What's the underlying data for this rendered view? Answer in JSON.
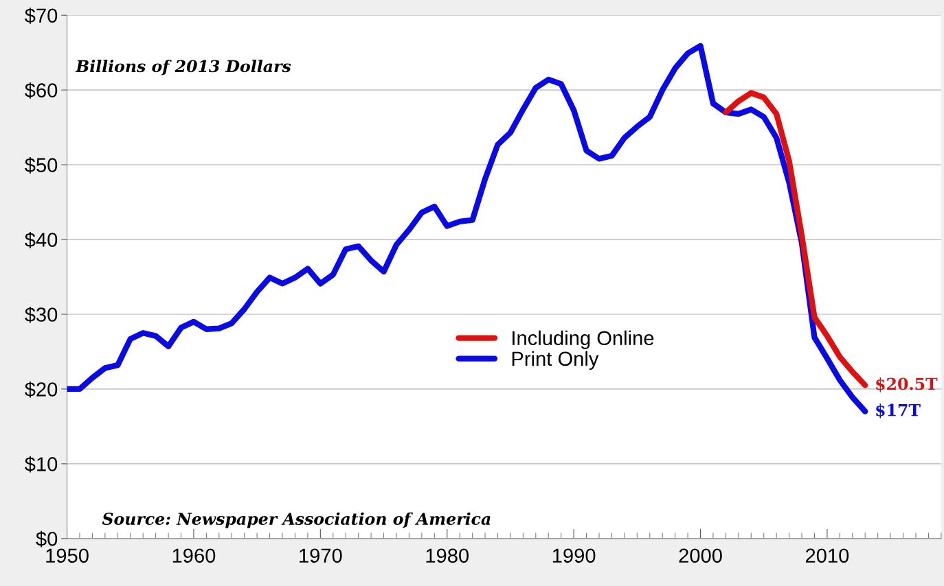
{
  "chart_data": {
    "type": "line",
    "x": [
      1950,
      1951,
      1952,
      1953,
      1954,
      1955,
      1956,
      1957,
      1958,
      1959,
      1960,
      1961,
      1962,
      1963,
      1964,
      1965,
      1966,
      1967,
      1968,
      1969,
      1970,
      1971,
      1972,
      1973,
      1974,
      1975,
      1976,
      1977,
      1978,
      1979,
      1980,
      1981,
      1982,
      1983,
      1984,
      1985,
      1986,
      1987,
      1988,
      1989,
      1990,
      1991,
      1992,
      1993,
      1994,
      1995,
      1996,
      1997,
      1998,
      1999,
      2000,
      2001,
      2002,
      2003,
      2004,
      2005,
      2006,
      2007,
      2008,
      2009,
      2010,
      2011,
      2012,
      2013
    ],
    "series": [
      {
        "name": "Including Online",
        "color": "#e01010",
        "x": [
          2002,
          2003,
          2004,
          2005,
          2006,
          2007,
          2008,
          2009,
          2010,
          2011,
          2012,
          2013
        ],
        "values": [
          57.0,
          58.5,
          59.6,
          59.0,
          56.8,
          50.5,
          40.5,
          29.6,
          27.1,
          24.3,
          22.3,
          20.5
        ]
      },
      {
        "name": "Print Only",
        "color": "#0a0ae6",
        "values": [
          20.0,
          20.0,
          21.5,
          22.8,
          23.2,
          26.7,
          27.5,
          27.1,
          25.7,
          28.2,
          29.0,
          28.0,
          28.1,
          28.8,
          30.7,
          33.0,
          34.9,
          34.1,
          34.9,
          36.1,
          34.1,
          35.3,
          38.7,
          39.1,
          37.2,
          35.7,
          39.3,
          41.3,
          43.6,
          44.4,
          41.8,
          42.4,
          42.6,
          48.1,
          52.7,
          54.3,
          57.4,
          60.3,
          61.4,
          60.8,
          57.3,
          51.9,
          50.8,
          51.2,
          53.6,
          55.1,
          56.4,
          60.0,
          62.9,
          64.9,
          65.9,
          58.2,
          57.0,
          56.8,
          57.4,
          56.4,
          53.6,
          47.6,
          39.5,
          26.9,
          24.1,
          21.2,
          18.9,
          17.0
        ]
      }
    ],
    "xlim": [
      1950,
      2019
    ],
    "xticks": [
      1950,
      1960,
      1970,
      1980,
      1990,
      2000,
      2010
    ],
    "ylim": [
      0,
      70
    ],
    "yticks": [
      {
        "value": 0,
        "label": "$0"
      },
      {
        "value": 10,
        "label": "$10"
      },
      {
        "value": 20,
        "label": "$20"
      },
      {
        "value": 30,
        "label": "$30"
      },
      {
        "value": 40,
        "label": "$40"
      },
      {
        "value": 50,
        "label": "$50"
      },
      {
        "value": 60,
        "label": "$60"
      },
      {
        "value": 70,
        "label": "$70"
      }
    ],
    "grid": "y",
    "legend": "center",
    "marker": "none",
    "line_style": "solid",
    "annotations": [
      {
        "text": "Billions of 2013 Dollars"
      },
      {
        "text": "Source: Newspaper Association of America"
      },
      {
        "text": "$20.5T",
        "x": 2013,
        "y": 20.5
      },
      {
        "text": "$17T",
        "x": 2013,
        "y": 17.0
      }
    ]
  }
}
